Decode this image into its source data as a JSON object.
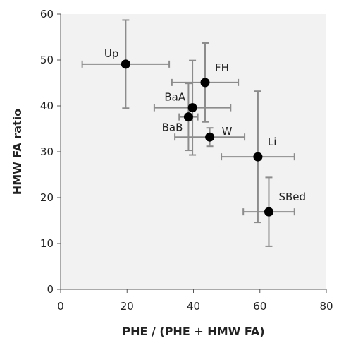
{
  "chart_data": {
    "type": "scatter",
    "title": "",
    "xlabel": "PHE / (PHE + HMW FA)",
    "ylabel": "HMW FA ratio",
    "xlim": [
      0,
      80
    ],
    "ylim": [
      0,
      60
    ],
    "xticks": [
      0,
      20,
      40,
      60,
      80
    ],
    "yticks": [
      0,
      10,
      20,
      30,
      40,
      50,
      60
    ],
    "grid": false,
    "plot_background": "#f2f2f2",
    "marker_color": "#000000",
    "errorbar_color": "#8c8c8c",
    "points": [
      {
        "label": "Up",
        "x": 19.6,
        "y": 49.1,
        "xerr": 13.1,
        "yerr": 9.6,
        "label_pos": "upper-left"
      },
      {
        "label": "FH",
        "x": 43.5,
        "y": 45.1,
        "xerr": 10.0,
        "yerr": 8.6,
        "label_pos": "upper-right"
      },
      {
        "label": "BaA",
        "x": 39.7,
        "y": 39.6,
        "xerr": 11.5,
        "yerr": 10.3,
        "label_pos": "upper-left"
      },
      {
        "label": "BaB",
        "x": 38.5,
        "y": 37.6,
        "xerr": 2.8,
        "yerr": 7.3,
        "label_pos": "lower-left"
      },
      {
        "label": "W",
        "x": 44.9,
        "y": 33.2,
        "xerr": 10.5,
        "yerr": 2.0,
        "label_pos": "right"
      },
      {
        "label": "Li",
        "x": 59.4,
        "y": 28.9,
        "xerr": 11.0,
        "yerr": 14.3,
        "label_pos": "upper-right"
      },
      {
        "label": "SBed",
        "x": 62.7,
        "y": 16.9,
        "xerr": 7.7,
        "yerr": 7.5,
        "label_pos": "upper-right"
      }
    ]
  }
}
